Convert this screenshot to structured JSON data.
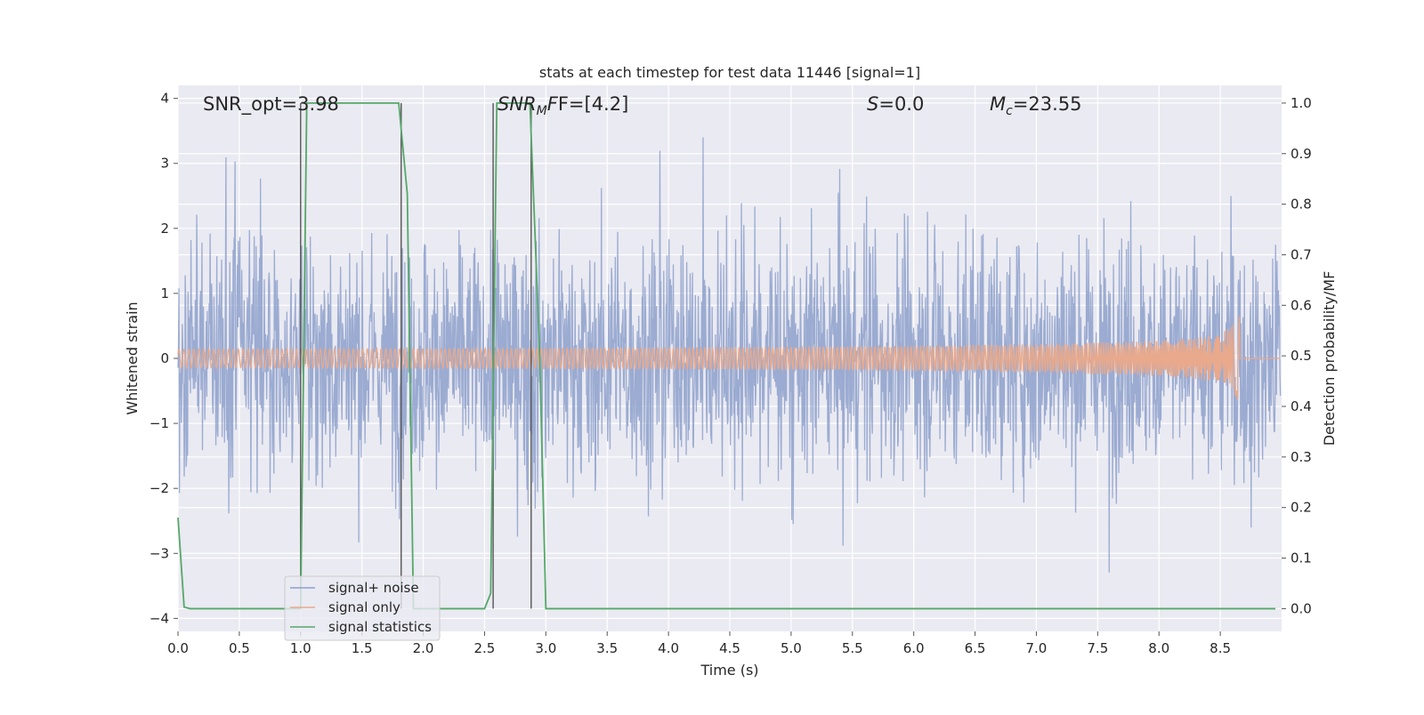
{
  "chart_data": {
    "type": "line",
    "title": "stats at each timestep for test data 11446 [signal=1]",
    "xlabel": "Time (s)",
    "ylabel_left": "Whitened strain",
    "ylabel_right": "Detection probability/MF",
    "xlim": [
      0.0,
      9.0
    ],
    "ylim_left": [
      -4.2,
      4.2
    ],
    "ylim_right": [
      -0.045,
      1.035
    ],
    "xticks": [
      "0.0",
      "0.5",
      "1.0",
      "1.5",
      "2.0",
      "2.5",
      "3.0",
      "3.5",
      "4.0",
      "4.5",
      "5.0",
      "5.5",
      "6.0",
      "6.5",
      "7.0",
      "7.5",
      "8.0",
      "8.5"
    ],
    "yticks_left": [
      "4",
      "3",
      "2",
      "1",
      "0",
      "−1",
      "−2",
      "−3",
      "−4"
    ],
    "yticks_right": [
      "1.0",
      "0.9",
      "0.8",
      "0.7",
      "0.6",
      "0.5",
      "0.4",
      "0.3",
      "0.2",
      "0.1",
      "0.0"
    ],
    "grid": true,
    "legend_position": "lower-left",
    "annotations": {
      "snr_opt": "SNR_opt=3.98",
      "snr_mf_base": "SNR",
      "snr_mf_sub": "M",
      "snr_mf_rest": "F=[4.2]",
      "s_italic": "S",
      "s_rest": "=0.0",
      "mc_base": "M",
      "mc_sub": "c",
      "mc_rest": "=23.55"
    },
    "series": [
      {
        "name": "signal+ noise",
        "color": "#8da0cb",
        "description_values": "dense whitened noise, roughly within -2..2.5 with spikes to about +/-3.5",
        "noise_envelope": [
          -3.5,
          3.4
        ]
      },
      {
        "name": "signal only",
        "color": "#e8a98c",
        "chirp_end_time": 8.66,
        "chirp_peak_amplitude": 0.95
      },
      {
        "name": "signal statistics",
        "color": "#55a868",
        "x": [
          0.0,
          0.05,
          0.1,
          0.95,
          1.0,
          1.05,
          1.8,
          1.87,
          1.92,
          2.5,
          2.55,
          2.6,
          2.87,
          2.95,
          3.0,
          8.95
        ],
        "y": [
          0.18,
          0.003,
          0.0,
          0.0,
          0.0,
          1.0,
          1.0,
          0.82,
          0.0,
          0.0,
          0.03,
          1.0,
          1.0,
          0.5,
          0.0,
          0.0
        ]
      }
    ],
    "vertical_markers": [
      {
        "x": 1.0,
        "y_bottom": 0.0
      },
      {
        "x": 1.82,
        "y_bottom": 0.0
      },
      {
        "x": 2.57,
        "y_bottom": 0.0
      },
      {
        "x": 2.88,
        "y_bottom": 0.0
      }
    ],
    "colors": {
      "plot_background": "#eaeaf2",
      "grid": "#ffffff",
      "noise": "#8da0cb",
      "signal": "#e8a98c",
      "statistics": "#55a868",
      "markers": "#555555"
    }
  }
}
